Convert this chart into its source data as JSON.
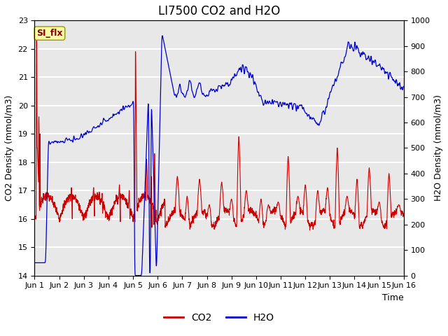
{
  "title": "LI7500 CO2 and H2O",
  "xlabel": "Time",
  "ylabel_left": "CO2 Density (mmol/m3)",
  "ylabel_right": "H2O Density (mmol/m3)",
  "co2_ylim": [
    14.0,
    23.0
  ],
  "h2o_ylim": [
    0,
    1000
  ],
  "co2_yticks": [
    14.0,
    15.0,
    16.0,
    17.0,
    18.0,
    19.0,
    20.0,
    21.0,
    22.0,
    23.0
  ],
  "h2o_yticks": [
    0,
    100,
    200,
    300,
    400,
    500,
    600,
    700,
    800,
    900,
    1000
  ],
  "co2_color": "#cc0000",
  "h2o_color": "#0000cc",
  "plot_bg_color": "#e8e8e8",
  "annotation_text": "SI_flx",
  "annotation_bg": "#ffffaa",
  "annotation_border": "#999900",
  "annotation_text_color": "#880000",
  "legend_co2": "CO2",
  "legend_h2o": "H2O",
  "xtick_labels": [
    "Jun 1",
    "Jun 2",
    "Jun 3",
    "Jun 4",
    "Jun 5",
    "Jun 6",
    "Jun 7",
    "Jun 8",
    "Jun 9",
    "Jun 10",
    "Jun 11",
    "Jun 12",
    "Jun 13",
    "Jun 14",
    "Jun 15",
    "Jun 16"
  ],
  "n_points": 2000,
  "title_fontsize": 12,
  "axis_label_fontsize": 9,
  "tick_fontsize": 8
}
